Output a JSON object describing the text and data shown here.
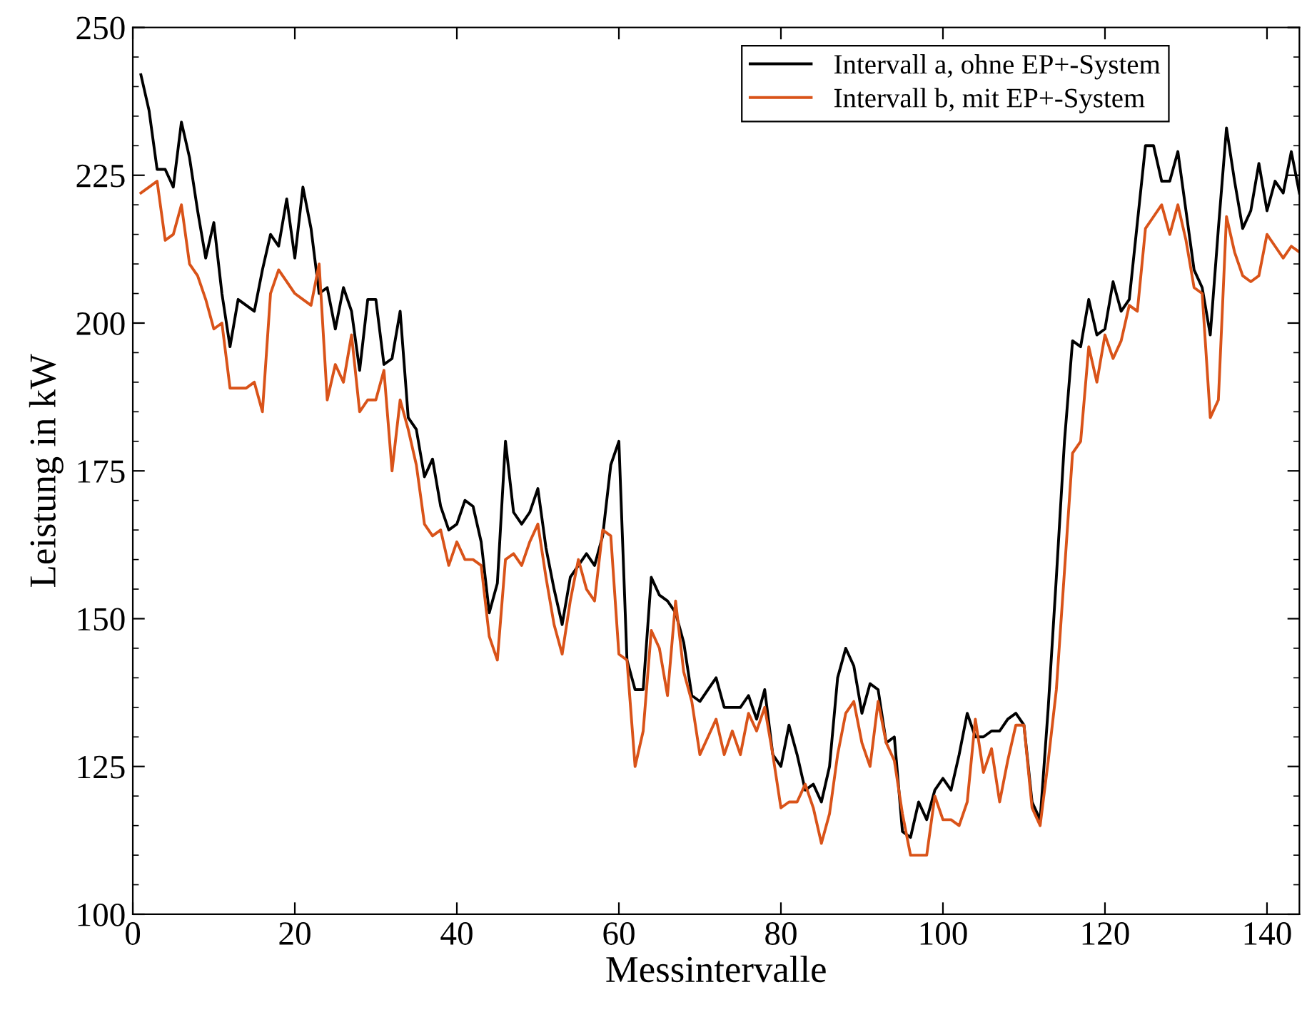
{
  "chart_data": {
    "type": "line",
    "xlabel": "Messintervalle",
    "ylabel": "Leistung in kW",
    "x": [
      1,
      2,
      3,
      4,
      5,
      6,
      7,
      8,
      9,
      10,
      11,
      12,
      13,
      14,
      15,
      16,
      17,
      18,
      19,
      20,
      21,
      22,
      23,
      24,
      25,
      26,
      27,
      28,
      29,
      30,
      31,
      32,
      33,
      34,
      35,
      36,
      37,
      38,
      39,
      40,
      41,
      42,
      43,
      44,
      45,
      46,
      47,
      48,
      49,
      50,
      51,
      52,
      53,
      54,
      55,
      56,
      57,
      58,
      59,
      60,
      61,
      62,
      63,
      64,
      65,
      66,
      67,
      68,
      69,
      70,
      71,
      72,
      73,
      74,
      75,
      76,
      77,
      78,
      79,
      80,
      81,
      82,
      83,
      84,
      85,
      86,
      87,
      88,
      89,
      90,
      91,
      92,
      93,
      94,
      95,
      96,
      97,
      98,
      99,
      100,
      101,
      102,
      103,
      104,
      105,
      106,
      107,
      108,
      109,
      110,
      111,
      112,
      113,
      114,
      115,
      116,
      117,
      118,
      119,
      120,
      121,
      122,
      123,
      124,
      125,
      126,
      127,
      128,
      129,
      130,
      131,
      132,
      133,
      134,
      135,
      136,
      137,
      138,
      139,
      140,
      141,
      142,
      143,
      144
    ],
    "series": [
      {
        "name": "Intervall a, ohne EP+-System",
        "color": "#000000",
        "values": [
          242,
          236,
          226,
          226,
          223,
          234,
          228,
          219,
          211,
          217,
          205,
          196,
          204,
          203,
          202,
          209,
          215,
          213,
          221,
          211,
          223,
          216,
          205,
          206,
          199,
          206,
          202,
          192,
          204,
          204,
          193,
          194,
          202,
          184,
          182,
          174,
          177,
          169,
          165,
          166,
          170,
          169,
          163,
          151,
          156,
          180,
          168,
          166,
          168,
          172,
          162,
          155,
          149,
          157,
          159,
          161,
          159,
          164,
          176,
          180,
          143,
          138,
          138,
          157,
          154,
          153,
          151,
          146,
          137,
          136,
          138,
          140,
          135,
          135,
          135,
          137,
          133,
          138,
          127,
          125,
          132,
          127,
          121,
          122,
          119,
          125,
          140,
          145,
          142,
          134,
          139,
          138,
          129,
          130,
          114,
          113,
          119,
          116,
          121,
          123,
          121,
          127,
          134,
          130,
          130,
          131,
          131,
          133,
          134,
          132,
          119,
          116,
          135,
          157,
          180,
          197,
          196,
          204,
          198,
          199,
          207,
          202,
          204,
          217,
          230,
          230,
          224,
          224,
          229,
          219,
          209,
          206,
          198,
          216,
          233,
          224,
          216,
          219,
          227,
          219,
          224,
          222,
          229,
          222
        ]
      },
      {
        "name": "Intervall b, mit EP+-System",
        "color": "#d95319",
        "values": [
          222,
          223,
          224,
          214,
          215,
          220,
          210,
          208,
          204,
          199,
          200,
          189,
          189,
          189,
          190,
          185,
          205,
          209,
          207,
          205,
          204,
          203,
          210,
          187,
          193,
          190,
          198,
          185,
          187,
          187,
          192,
          175,
          187,
          182,
          176,
          166,
          164,
          165,
          159,
          163,
          160,
          160,
          159,
          147,
          143,
          160,
          161,
          159,
          163,
          166,
          157,
          149,
          144,
          153,
          160,
          155,
          153,
          165,
          164,
          144,
          143,
          125,
          131,
          148,
          145,
          137,
          153,
          141,
          136,
          127,
          130,
          133,
          127,
          131,
          127,
          134,
          131,
          135,
          127,
          118,
          119,
          119,
          122,
          118,
          112,
          117,
          127,
          134,
          136,
          129,
          125,
          136,
          129,
          126,
          117,
          110,
          110,
          110,
          120,
          116,
          116,
          115,
          119,
          133,
          124,
          128,
          119,
          126,
          132,
          132,
          118,
          115,
          126,
          138,
          158,
          178,
          180,
          196,
          190,
          198,
          194,
          197,
          203,
          202,
          216,
          218,
          220,
          215,
          220,
          214,
          206,
          205,
          184,
          187,
          218,
          212,
          208,
          207,
          208,
          215,
          213,
          211,
          213,
          212
        ]
      }
    ],
    "xlim": [
      0,
      144
    ],
    "ylim": [
      100,
      250
    ],
    "xticks": [
      0,
      20,
      40,
      60,
      80,
      100,
      120,
      140
    ],
    "yticks": [
      100,
      125,
      150,
      175,
      200,
      225,
      250
    ],
    "grid": false,
    "legend": "top right",
    "line_style": "solid",
    "marker": "none"
  }
}
